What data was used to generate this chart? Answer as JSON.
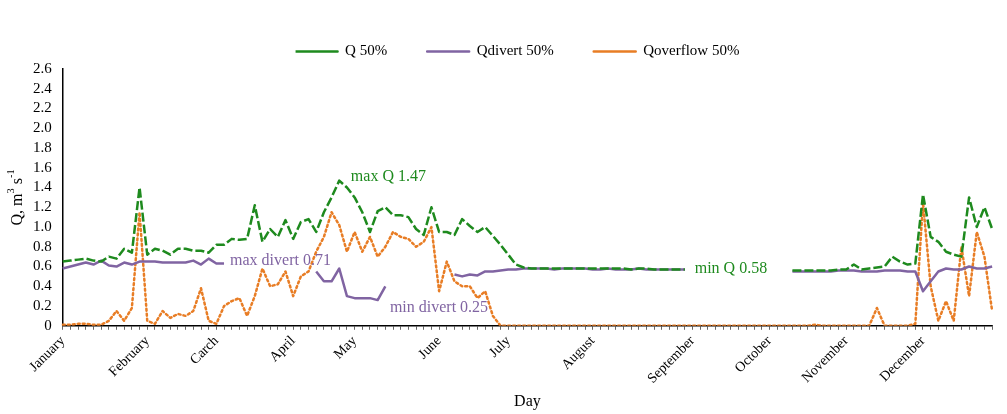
{
  "chart_data": {
    "type": "line",
    "xlabel": "Day",
    "ylabel": "Q, m$^{3}$ s$^{-1}$",
    "categories": [
      "January",
      null,
      null,
      null,
      null,
      null,
      null,
      null,
      null,
      null,
      null,
      "February",
      null,
      null,
      null,
      null,
      null,
      null,
      null,
      null,
      "Carch",
      null,
      null,
      null,
      null,
      null,
      null,
      null,
      null,
      null,
      "April",
      null,
      null,
      null,
      null,
      null,
      null,
      null,
      "May",
      null,
      null,
      null,
      null,
      null,
      null,
      null,
      null,
      null,
      null,
      "June",
      null,
      null,
      null,
      null,
      null,
      null,
      null,
      null,
      "July",
      null,
      null,
      null,
      null,
      null,
      null,
      null,
      null,
      null,
      null,
      "August",
      null,
      null,
      null,
      null,
      null,
      null,
      null,
      null,
      null,
      null,
      null,
      null,
      "September",
      null,
      null,
      null,
      null,
      null,
      null,
      null,
      null,
      null,
      "October",
      null,
      null,
      null,
      null,
      null,
      null,
      null,
      null,
      null,
      "November",
      null,
      null,
      null,
      null,
      null,
      null,
      null,
      null,
      null,
      "December",
      null,
      null,
      null,
      null,
      null,
      null,
      null,
      null,
      null
    ],
    "ylim": [
      0,
      2.6
    ],
    "yticks": [
      0,
      {
        "value": 0.2,
        "label": "0.2"
      },
      {
        "value": 0.4,
        "label": "0.4"
      },
      {
        "value": 0.6,
        "label": "0.6"
      },
      {
        "value": 0.8,
        "label": "0.8"
      },
      {
        "value": 1,
        "label": "1.0"
      },
      {
        "value": 1.2,
        "label": "1.2"
      },
      {
        "value": 1.4,
        "label": "1.4"
      },
      {
        "value": 1.6,
        "label": "1.6"
      },
      {
        "value": 1.8,
        "label": "1.8"
      },
      {
        "value": 2,
        "label": "2.0"
      },
      {
        "value": 2.2,
        "label": "2.2"
      },
      {
        "value": 2.4,
        "label": "2.4"
      },
      {
        "value": 2.6,
        "label": "2.6"
      }
    ],
    "grid": false,
    "legend": "top",
    "marker": "none",
    "series": [
      {
        "name": "Q 50%",
        "color": "#1e8a1e",
        "line_style": "dashed",
        "values": [
          0.65,
          0.66,
          0.67,
          0.68,
          0.66,
          0.65,
          0.7,
          0.68,
          0.78,
          0.74,
          1.4,
          0.72,
          0.78,
          0.76,
          0.72,
          0.78,
          0.78,
          0.76,
          0.76,
          0.74,
          0.82,
          0.82,
          0.88,
          0.87,
          0.88,
          1.22,
          0.85,
          0.98,
          0.9,
          1.07,
          0.88,
          1.05,
          1.08,
          0.95,
          1.15,
          1.3,
          1.47,
          1.4,
          1.3,
          1.15,
          0.95,
          1.16,
          1.2,
          1.12,
          1.12,
          1.1,
          0.98,
          0.92,
          1.2,
          0.95,
          0.95,
          0.92,
          1.08,
          1.01,
          0.95,
          1.0,
          0.91,
          0.82,
          0.72,
          0.62,
          0.59,
          0.58,
          0.58,
          0.58,
          0.58,
          0.58,
          0.58,
          0.58,
          0.58,
          0.58,
          0.58,
          0.58,
          0.58,
          0.58,
          0.57,
          0.58,
          0.58,
          0.57,
          0.57,
          0.57,
          0.57,
          0.57,
          null,
          null,
          null,
          null,
          null,
          null,
          null,
          null,
          null,
          null,
          null,
          null,
          null,
          0.56,
          0.56,
          0.56,
          0.56,
          0.56,
          0.56,
          0.57,
          0.57,
          0.62,
          0.57,
          0.58,
          0.59,
          0.6,
          0.7,
          0.65,
          0.62,
          0.63,
          1.33,
          0.9,
          0.85,
          0.75,
          0.72,
          0.7,
          1.3,
          1.0,
          1.2,
          0.98
        ]
      },
      {
        "name": "Qdivert 50%",
        "color": "#8064a2",
        "line_style": "solid",
        "values": [
          0.58,
          0.6,
          0.62,
          0.64,
          0.62,
          0.66,
          0.61,
          0.6,
          0.64,
          0.62,
          0.65,
          0.65,
          0.65,
          0.64,
          0.64,
          0.64,
          0.64,
          0.66,
          0.62,
          0.68,
          0.63,
          0.63,
          null,
          null,
          null,
          null,
          null,
          null,
          null,
          null,
          null,
          null,
          null,
          0.55,
          0.45,
          0.45,
          0.58,
          0.3,
          0.28,
          0.28,
          0.28,
          0.26,
          0.4,
          null,
          null,
          null,
          null,
          null,
          null,
          null,
          null,
          0.52,
          0.5,
          0.52,
          0.51,
          0.55,
          0.55,
          0.56,
          0.57,
          0.57,
          0.58,
          0.58,
          0.58,
          0.58,
          0.57,
          0.58,
          0.58,
          0.58,
          0.58,
          0.57,
          0.57,
          0.58,
          0.57,
          0.57,
          0.57,
          0.58,
          0.57,
          0.57,
          0.57,
          0.57,
          0.57,
          0.57,
          null,
          null,
          null,
          null,
          null,
          null,
          null,
          null,
          null,
          null,
          null,
          null,
          null,
          0.55,
          0.55,
          0.55,
          0.55,
          0.55,
          0.55,
          0.56,
          0.56,
          0.56,
          0.55,
          0.55,
          0.55,
          0.56,
          0.56,
          0.56,
          0.55,
          0.55,
          0.35,
          0.45,
          0.55,
          0.58,
          0.57,
          0.57,
          0.6,
          0.58,
          0.58,
          0.6
        ]
      },
      {
        "name": "Qoverflow 50%",
        "color": "#e87d25",
        "line_style": "dotted",
        "values": [
          0.01,
          0.01,
          0.02,
          0.02,
          0.01,
          0.01,
          0.05,
          0.15,
          0.05,
          0.18,
          1.15,
          0.05,
          0.02,
          0.15,
          0.08,
          0.12,
          0.1,
          0.15,
          0.38,
          0.05,
          0.02,
          0.2,
          0.25,
          0.28,
          0.1,
          0.3,
          0.58,
          0.4,
          0.42,
          0.55,
          0.3,
          0.5,
          0.55,
          0.75,
          0.9,
          1.15,
          1.02,
          0.75,
          0.95,
          0.75,
          0.9,
          0.7,
          0.8,
          0.95,
          0.9,
          0.88,
          0.8,
          0.85,
          1.0,
          0.35,
          0.65,
          0.45,
          0.4,
          0.4,
          0.28,
          0.35,
          0.1,
          0,
          0,
          0,
          0,
          0,
          0,
          0,
          0,
          0,
          0,
          0,
          0,
          0,
          0,
          0,
          0,
          0,
          0,
          0,
          0,
          0,
          0,
          0,
          0,
          0,
          0,
          0,
          0,
          0,
          0,
          0,
          0,
          0,
          0,
          0,
          0,
          0,
          0,
          0,
          0,
          0,
          0.01,
          0,
          0,
          0,
          0,
          0,
          0,
          0,
          0.18,
          0,
          0,
          0,
          0,
          0.02,
          1.25,
          0.4,
          0.05,
          0.25,
          0.05,
          0.8,
          0.3,
          0.95,
          0.7,
          0.15
        ]
      }
    ],
    "annotations": [
      "max Q 1.47",
      "max divert 0.71",
      "min divert 0.25",
      "min Q 0.58"
    ]
  }
}
